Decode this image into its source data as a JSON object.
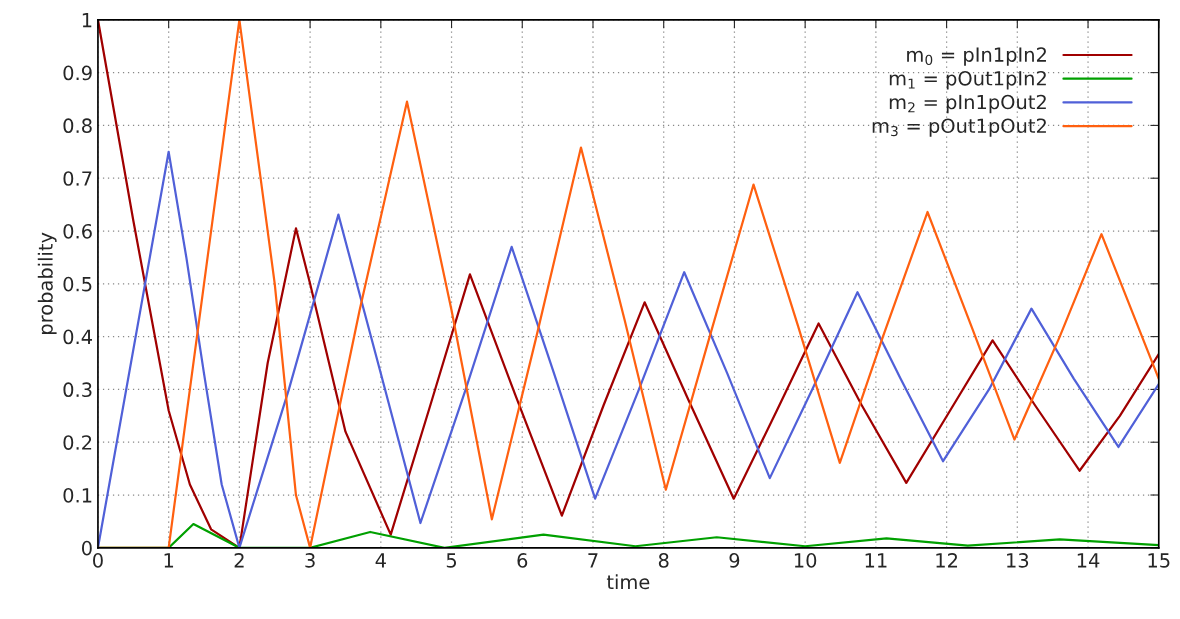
{
  "chart_data": {
    "type": "line",
    "xlabel": "time",
    "ylabel": "probability",
    "xlim": [
      0,
      15
    ],
    "ylim": [
      0,
      1
    ],
    "xticks": [
      0,
      1,
      2,
      3,
      4,
      5,
      6,
      7,
      8,
      9,
      10,
      11,
      12,
      13,
      14,
      15
    ],
    "yticks": [
      0,
      0.1,
      0.2,
      0.3,
      0.4,
      0.5,
      0.6,
      0.7,
      0.8,
      0.9,
      1
    ],
    "grid": true,
    "legend": "top right",
    "line_style": "solid",
    "marker": "none",
    "series": [
      {
        "name": "m$_{0}$ = pIn1pIn2",
        "color": "#a00000",
        "x": [
          0,
          0.5,
          1,
          1.3,
          1.6,
          2,
          2.4,
          2.8,
          3.0,
          3.5,
          4.14,
          4.7,
          5.26,
          5.9,
          6.56,
          7.15,
          7.73,
          8.35,
          8.99,
          9.6,
          10.19,
          10.8,
          11.43,
          12.05,
          12.65,
          13.25,
          13.88,
          14.45,
          15
        ],
        "values": [
          1,
          0.62,
          0.26,
          0.12,
          0.035,
          0,
          0.35,
          0.605,
          0.5,
          0.22,
          0.025,
          0.27,
          0.518,
          0.29,
          0.061,
          0.27,
          0.465,
          0.28,
          0.093,
          0.26,
          0.425,
          0.27,
          0.123,
          0.26,
          0.393,
          0.27,
          0.146,
          0.25,
          0.367
        ]
      },
      {
        "name": "m$_{1}$ = pOut1pIn2",
        "color": "#00a000",
        "x": [
          0,
          1,
          1.35,
          2,
          3,
          3.85,
          4.9,
          6.3,
          7.6,
          8.75,
          10,
          11.15,
          12.3,
          13.6,
          15
        ],
        "values": [
          0,
          0,
          0.045,
          0,
          0,
          0.03,
          0,
          0.025,
          0.003,
          0.02,
          0.003,
          0.018,
          0.004,
          0.016,
          0.005
        ]
      },
      {
        "name": "m$_{2}$ = pIn1pOut2",
        "color": "#5060d8",
        "x": [
          0,
          1,
          1.25,
          1.5,
          1.75,
          2,
          2.7,
          3.4,
          4.0,
          4.56,
          5.2,
          5.85,
          6.45,
          7.03,
          7.65,
          8.29,
          8.9,
          9.5,
          10.1,
          10.74,
          11.35,
          11.95,
          12.6,
          13.2,
          13.8,
          14.43,
          15
        ],
        "values": [
          0,
          0.75,
          0.55,
          0.33,
          0.12,
          0,
          0.3,
          0.631,
          0.33,
          0.047,
          0.3,
          0.57,
          0.33,
          0.093,
          0.3,
          0.522,
          0.33,
          0.132,
          0.3,
          0.484,
          0.32,
          0.164,
          0.3,
          0.453,
          0.32,
          0.191,
          0.31
        ]
      },
      {
        "name": "m$_{3}$ = pOut1pOut2",
        "color": "#ff6010",
        "x": [
          0,
          1,
          1.5,
          2,
          2.5,
          2.8,
          3,
          3.7,
          4.37,
          5.0,
          5.57,
          6.2,
          6.83,
          7.45,
          8.03,
          8.65,
          9.27,
          9.9,
          10.49,
          11.1,
          11.73,
          12.35,
          12.96,
          13.6,
          14.19,
          15
        ],
        "values": [
          0,
          0,
          0.5,
          1,
          0.5,
          0.1,
          0,
          0.45,
          0.845,
          0.45,
          0.054,
          0.4,
          0.758,
          0.43,
          0.11,
          0.4,
          0.688,
          0.42,
          0.161,
          0.4,
          0.636,
          0.42,
          0.205,
          0.4,
          0.594,
          0.32
        ]
      }
    ]
  }
}
